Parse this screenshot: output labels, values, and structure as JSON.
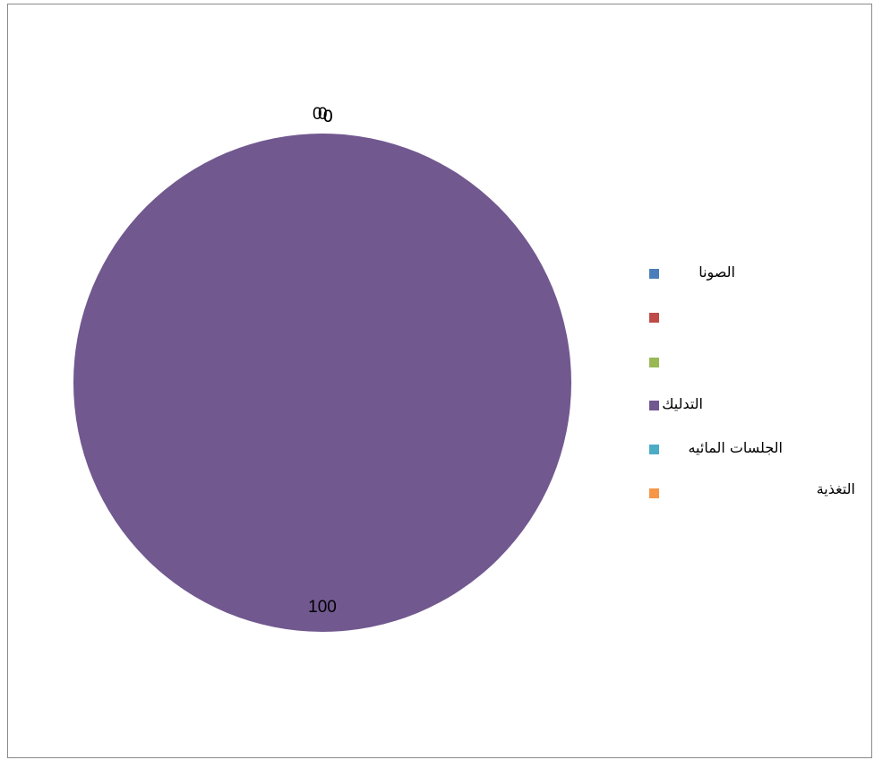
{
  "chart_data": {
    "type": "pie",
    "categories": [
      "الصونا",
      "",
      "",
      "التدليك",
      "الجلسات المائيه",
      "التغذية"
    ],
    "values": [
      0,
      0,
      0,
      100,
      0,
      0
    ],
    "colors": [
      "#4a7ebb",
      "#be4b48",
      "#98b954",
      "#71588f",
      "#4bacc6",
      "#f79646"
    ],
    "data_labels": [
      "0",
      "0",
      "0",
      "100",
      "0",
      "0"
    ],
    "legend_placement": "right"
  }
}
